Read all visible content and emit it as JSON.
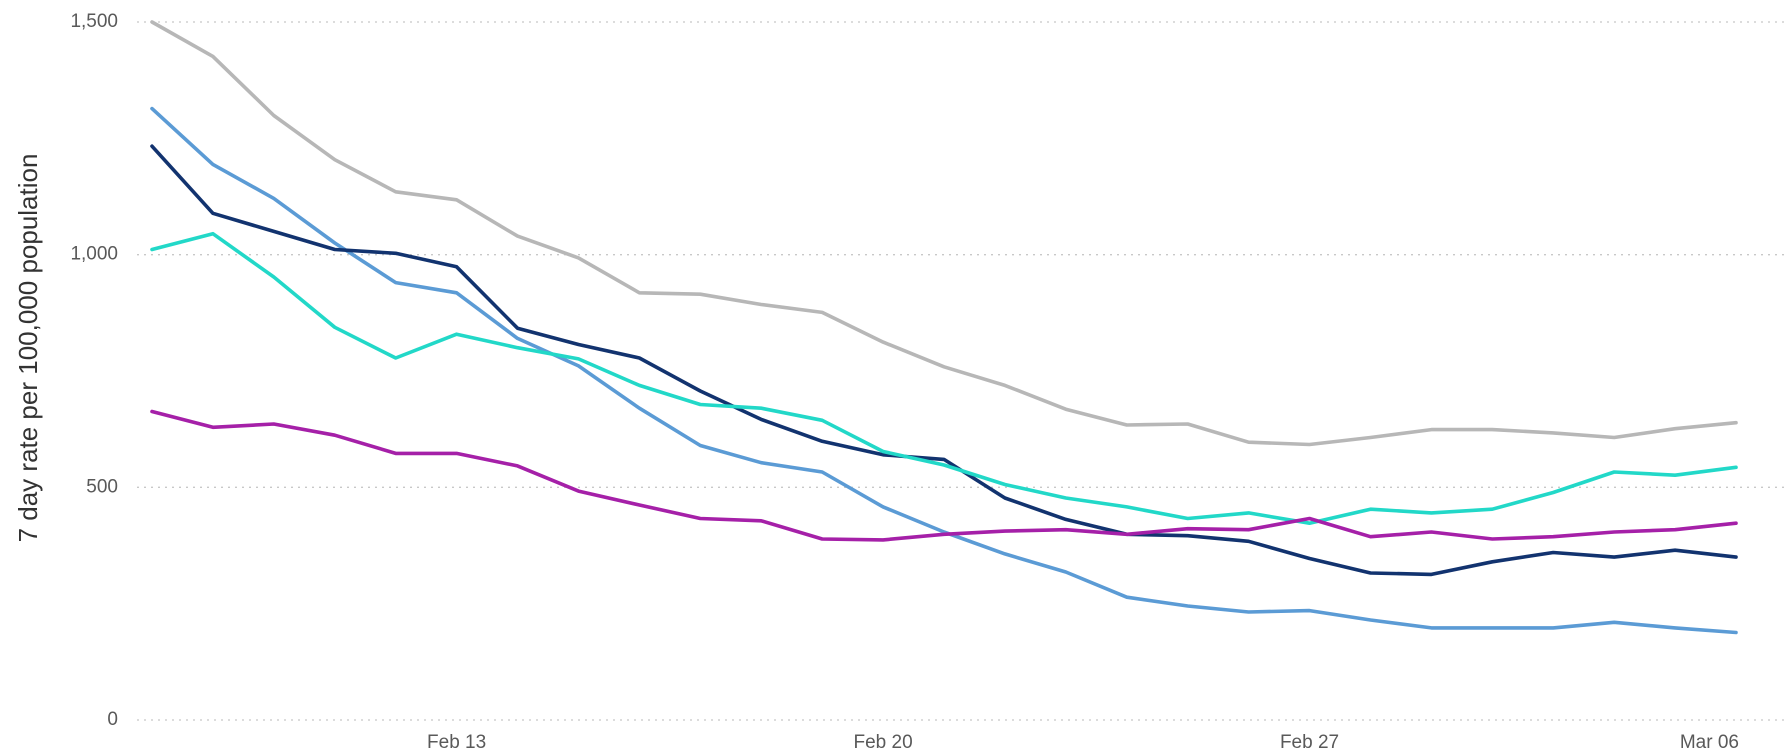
{
  "chart_data": {
    "type": "line",
    "y_label": "7 day rate per 100,000 population",
    "categories": [
      null,
      null,
      null,
      null,
      null,
      "Feb 13",
      null,
      null,
      null,
      null,
      null,
      null,
      "Feb 20",
      null,
      null,
      null,
      null,
      null,
      null,
      "Feb 27",
      null,
      null,
      null,
      null,
      null,
      null,
      "Mar 06"
    ],
    "ylim": [
      0,
      1500
    ],
    "yticks": [
      0,
      500,
      {
        "value": 1000,
        "label": "1,000"
      },
      {
        "value": 1500,
        "label": "1,500"
      }
    ],
    "grid": true,
    "series": [
      {
        "color": "#b7b7b7",
        "values": [
          1500,
          1426,
          1299,
          1204,
          1135,
          1118,
          1040,
          993,
          918,
          915,
          893,
          876,
          812,
          759,
          719,
          668,
          634,
          636,
          597,
          592,
          607,
          624,
          624,
          617,
          607,
          626,
          639
        ]
      },
      {
        "color": "#5b9bd5",
        "values": [
          1314,
          1194,
          1121,
          1025,
          940,
          918,
          820,
          761,
          670,
          590,
          553,
          533,
          458,
          404,
          357,
          318,
          264,
          245,
          232,
          235,
          215,
          198,
          198,
          198,
          210,
          198,
          188
        ]
      },
      {
        "color": "#12336f",
        "values": [
          1233,
          1089,
          1050,
          1011,
          1003,
          974,
          842,
          807,
          778,
          707,
          646,
          599,
          570,
          560,
          477,
          431,
          399,
          396,
          384,
          347,
          316,
          313,
          340,
          360,
          350,
          365,
          350
        ]
      },
      {
        "color": "#22d8c8",
        "values": [
          1011,
          1045,
          952,
          844,
          778,
          829,
          800,
          776,
          719,
          678,
          670,
          644,
          577,
          548,
          506,
          477,
          458,
          433,
          445,
          423,
          453,
          445,
          453,
          489,
          533,
          526,
          543
        ]
      },
      {
        "color": "#a520a8",
        "values": [
          663,
          629,
          636,
          612,
          573,
          573,
          546,
          492,
          462,
          433,
          428,
          389,
          387,
          399,
          406,
          409,
          399,
          411,
          409,
          433,
          394,
          404,
          389,
          394,
          404,
          409,
          423
        ]
      }
    ]
  }
}
